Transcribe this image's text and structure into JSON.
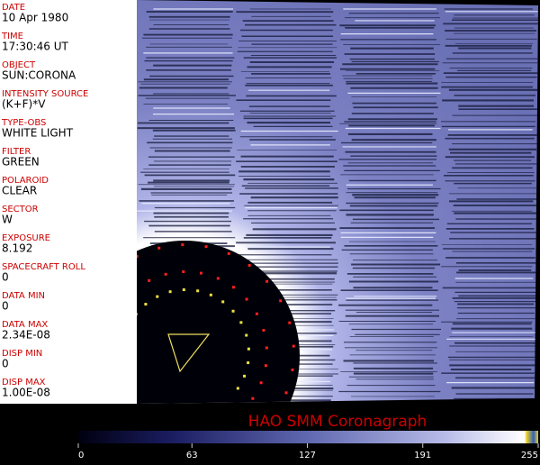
{
  "fields": [
    {
      "label": "DATE",
      "value": "10 Apr 1980"
    },
    {
      "label": "TIME",
      "value": "17:30:46 UT"
    },
    {
      "label": "OBJECT",
      "value": "SUN:CORONA"
    },
    {
      "label": "INTENSITY SOURCE",
      "value": "(K+F)*V"
    },
    {
      "label": "TYPE-OBS",
      "value": "WHITE LIGHT"
    },
    {
      "label": "FILTER",
      "value": "GREEN"
    },
    {
      "label": "POLAROID",
      "value": "CLEAR"
    },
    {
      "label": "SECTOR",
      "value": "W"
    },
    {
      "label": "EXPOSURE",
      "value": "8.192"
    },
    {
      "label": "SPACECRAFT ROLL",
      "value": "0"
    },
    {
      "label": "DATA MIN",
      "value": "0"
    },
    {
      "label": "DATA MAX",
      "value": "2.34E-08"
    },
    {
      "label": "DISP MIN",
      "value": "0"
    },
    {
      "label": "DISP MAX",
      "value": "1.00E-08"
    }
  ],
  "title": "HAO   SMM  Coronagraph",
  "colorbar": {
    "range": [
      0,
      255
    ],
    "ticks": [
      0,
      63,
      127,
      191,
      255
    ]
  }
}
